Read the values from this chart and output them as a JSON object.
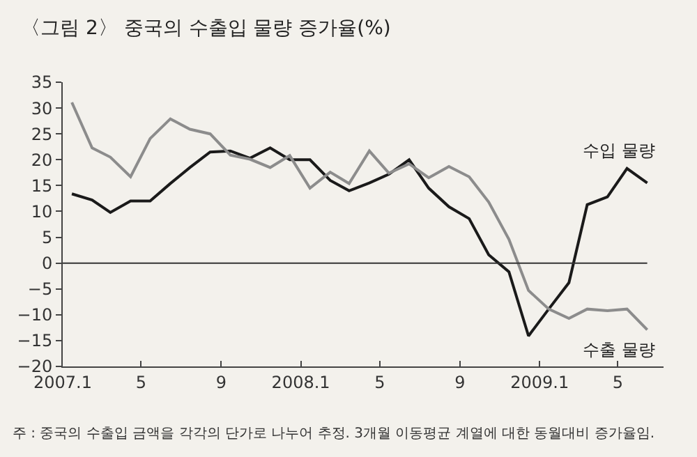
{
  "chart_data": {
    "type": "line",
    "title": "〈그림 2〉 중국의 수출입 물량 증가율(%)",
    "x": [
      "2007-01-15",
      "2007-02-15",
      "2007-03-15",
      "2007-04-15",
      "2007-05-15",
      "2007-06-15",
      "2007-07-15",
      "2007-08-15",
      "2007-09-15",
      "2007-10-15",
      "2007-11-15",
      "2007-12-15",
      "2008-01-15",
      "2008-02-15",
      "2008-03-15",
      "2008-04-15",
      "2008-05-15",
      "2008-06-15",
      "2008-07-15",
      "2008-08-15",
      "2008-09-15",
      "2008-10-15",
      "2008-11-15",
      "2008-12-15",
      "2009-01-15",
      "2009-02-15",
      "2009-03-15",
      "2009-04-15",
      "2009-05-15",
      "2009-06-15"
    ],
    "series": [
      {
        "name": "수입 물량",
        "color": "#1a1a1a",
        "values": [
          13.4,
          12.2,
          9.8,
          12.0,
          12.0,
          15.4,
          18.5,
          21.5,
          21.7,
          20.3,
          22.3,
          20.0,
          20.0,
          16.0,
          14.0,
          15.5,
          17.2,
          20.0,
          14.5,
          10.9,
          8.6,
          1.6,
          -1.7,
          -14.1,
          -8.9,
          -3.8,
          11.3,
          12.8,
          18.3,
          15.5
        ]
      },
      {
        "name": "수출 물량",
        "color": "#8c8c8c",
        "values": [
          31.1,
          22.3,
          20.5,
          16.7,
          24.1,
          27.9,
          25.9,
          25.0,
          20.9,
          20.1,
          18.5,
          20.8,
          14.5,
          17.6,
          15.4,
          21.7,
          17.4,
          19.2,
          16.5,
          18.7,
          16.7,
          11.8,
          4.6,
          -5.3,
          -8.9,
          -10.7,
          -8.9,
          -9.2,
          -8.9,
          -12.9
        ]
      }
    ],
    "xlim": [
      "2007-01-01",
      "2009-07-10"
    ],
    "xticks": [
      {
        "value": "2007-01-01",
        "label": "2007.1"
      },
      {
        "value": "2007-05-01",
        "label": "5"
      },
      {
        "value": "2007-09-01",
        "label": "9"
      },
      {
        "value": "2008-01-01",
        "label": "2008.1"
      },
      {
        "value": "2008-05-01",
        "label": "5"
      },
      {
        "value": "2008-09-01",
        "label": "9"
      },
      {
        "value": "2009-01-01",
        "label": "2009.1"
      },
      {
        "value": "2009-05-01",
        "label": "5"
      }
    ],
    "ylim": [
      -20,
      35
    ],
    "yticks": [
      {
        "value": -20,
        "label": "−20"
      },
      {
        "value": -15,
        "label": "−15"
      },
      {
        "value": -10,
        "label": "−10"
      },
      {
        "value": -5,
        "label": "−5"
      },
      0,
      5,
      10,
      15,
      20,
      25,
      30,
      35
    ],
    "ref_lines": [
      {
        "axis": "y",
        "value": 0,
        "color": "#333333"
      }
    ],
    "annotations": [
      "주 : 중국의 수출입 금액을 각각의 단가로 나누어 추정. 3개월 이동평균 계열에 대한 동월대비 증가율임."
    ],
    "grid": false,
    "legend": false,
    "marker": "none",
    "line_style": "solid"
  }
}
